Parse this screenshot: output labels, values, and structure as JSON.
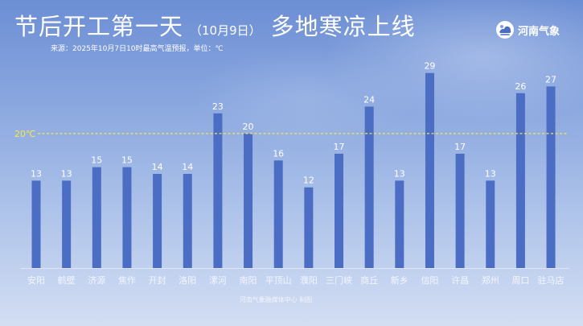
{
  "header": {
    "title_main": "节后开工第一天",
    "title_date": "（10月9日）",
    "title_tail": "多地寒凉上线",
    "source": "来源：2025年10月7日10时最高气温预报，单位：℃"
  },
  "logo": {
    "icon": "weather-emblem-icon",
    "text": "河南气象"
  },
  "footer": {
    "credit": "河南气象融媒体中心 制图"
  },
  "colors": {
    "bar": "#4b6dc3",
    "reference_line": "#f5e84c",
    "value_label": "#ffffff",
    "category_label": "#f3f6ff"
  },
  "chart_data": {
    "type": "bar",
    "categories": [
      "安阳",
      "鹤壁",
      "济源",
      "焦作",
      "开封",
      "洛阳",
      "漯河",
      "南阳",
      "平顶山",
      "濮阳",
      "三门峡",
      "商丘",
      "新乡",
      "信阳",
      "许昌",
      "郑州",
      "周口",
      "驻马店"
    ],
    "values": [
      13,
      13,
      15,
      15,
      14,
      14,
      23,
      20,
      16,
      12,
      17,
      24,
      13,
      29,
      17,
      13,
      26,
      27
    ],
    "ylim": [
      0,
      31
    ],
    "grid": false,
    "legend": "none",
    "reference_line": {
      "value": 20,
      "label": "20℃"
    }
  }
}
